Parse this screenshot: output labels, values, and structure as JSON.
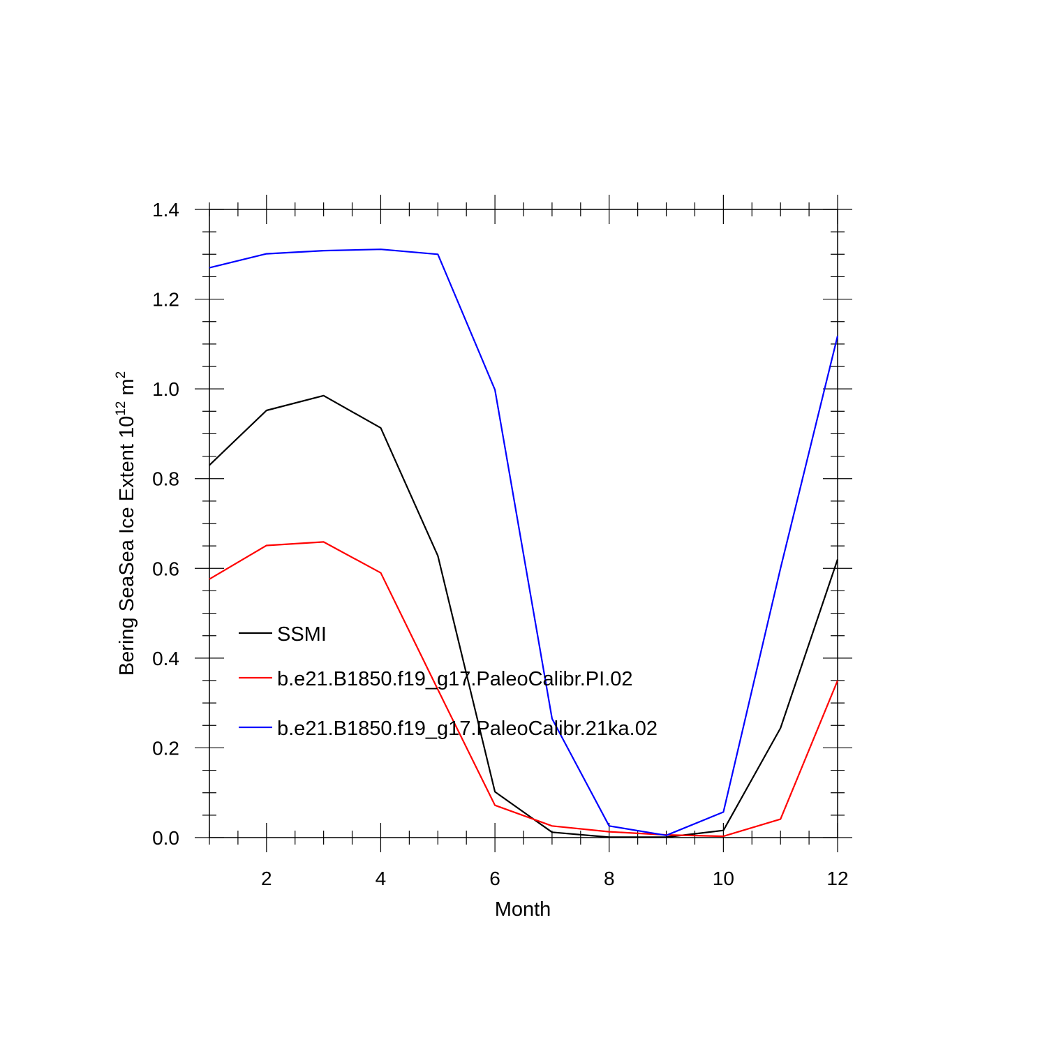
{
  "chart_data": {
    "type": "line",
    "xlabel": "Month",
    "ylabel": "Bering SeaSea Ice Extent 10",
    "ylabel_exp": "12",
    "ylabel_unit": " m",
    "ylabel_unit_exp": "2",
    "xlim": [
      1,
      12
    ],
    "ylim": [
      0.0,
      1.4
    ],
    "xticks": [
      2,
      4,
      6,
      8,
      10,
      12
    ],
    "xtick_labels": [
      "2",
      "4",
      "6",
      "8",
      "10",
      "12"
    ],
    "yticks": [
      0.0,
      0.2,
      0.4,
      0.6,
      0.8,
      1.0,
      1.2,
      1.4
    ],
    "ytick_labels": [
      "0.0",
      "0.2",
      "0.4",
      "0.6",
      "0.8",
      "1.0",
      "1.2",
      "1.4"
    ],
    "grid": false,
    "legend_position": "left-middle",
    "x": [
      1,
      2,
      3,
      4,
      5,
      6,
      7,
      8,
      9,
      10,
      11,
      12
    ],
    "series": [
      {
        "name": "SSMI",
        "color": "#000000",
        "values": [
          0.83,
          0.952,
          0.985,
          0.913,
          0.628,
          0.102,
          0.012,
          0.001,
          0.001,
          0.016,
          0.244,
          0.62
        ]
      },
      {
        "name": "b.e21.B1850.f19_g17.PaleoCalibr.PI.02",
        "color": "#ff0000",
        "values": [
          0.576,
          0.651,
          0.659,
          0.59,
          0.33,
          0.072,
          0.026,
          0.013,
          0.006,
          0.003,
          0.041,
          0.35
        ]
      },
      {
        "name": "b.e21.B1850.f19_g17.PaleoCalibr.21ka.02",
        "color": "#0000ff",
        "values": [
          1.27,
          1.301,
          1.308,
          1.311,
          1.3,
          0.998,
          0.265,
          0.026,
          0.005,
          0.057,
          0.6,
          1.118
        ]
      }
    ]
  }
}
